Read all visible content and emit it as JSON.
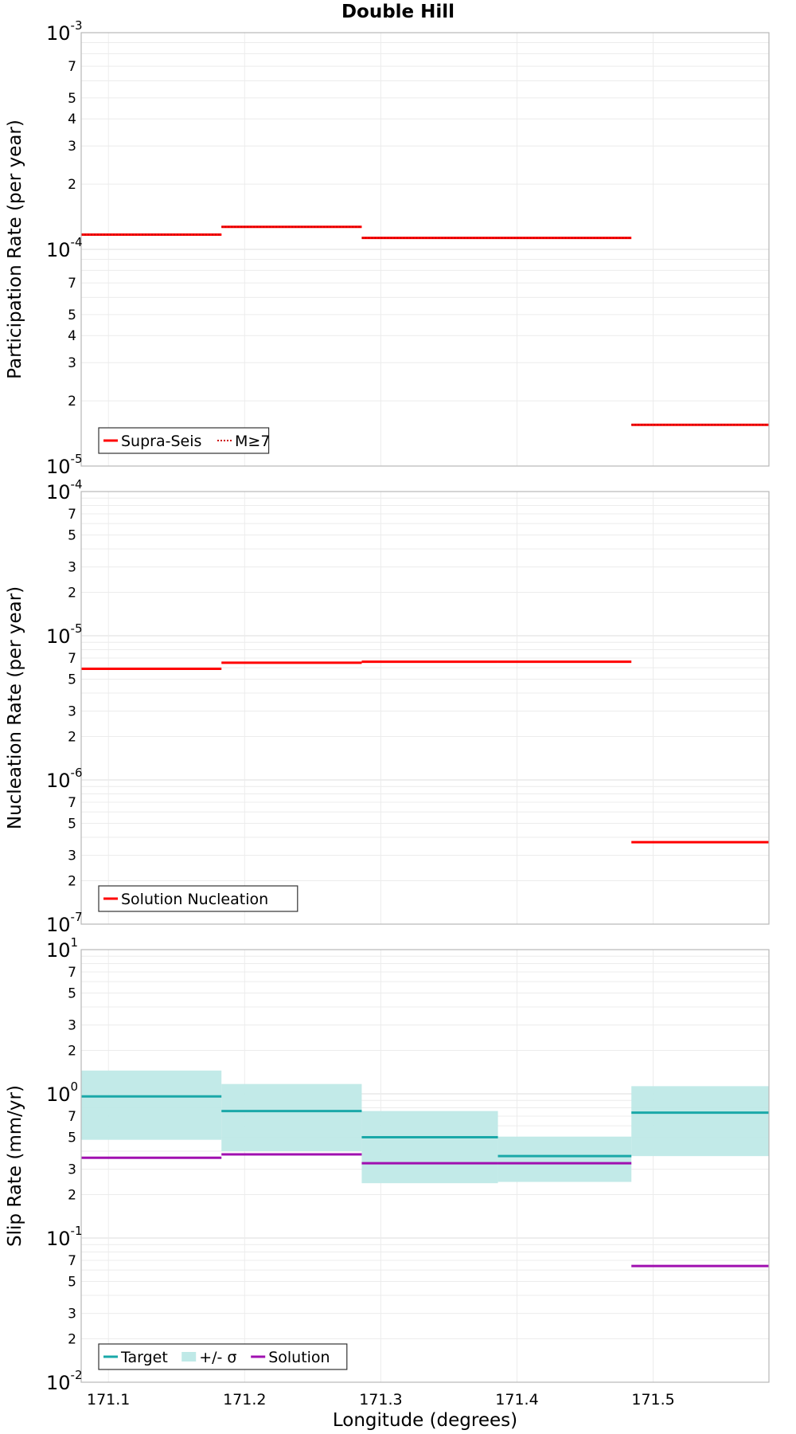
{
  "chart_data": {
    "type": "line",
    "title": "Double Hill",
    "xlabel": "Longitude (degrees)",
    "x_ticks": [
      "171.1",
      "171.2",
      "171.3",
      "171.4",
      "171.5"
    ],
    "xlim": [
      171.08,
      171.585
    ],
    "grid": true,
    "x_edges": [
      171.08,
      171.183,
      171.286,
      171.386,
      171.484,
      171.585
    ],
    "panels": [
      {
        "ylabel": "Participation Rate (per year)",
        "y_scale": "log",
        "ylim": [
          1e-05,
          0.001
        ],
        "legend_position": "bottom-left",
        "series": [
          {
            "name": "Supra-Seis",
            "style": "solid",
            "color": "#ff0000",
            "values": [
              0.000117,
              0.000127,
              0.000113,
              0.000113,
              1.55e-05
            ]
          },
          {
            "name": "M≥7",
            "style": "dotted",
            "color": "#cc0000",
            "values": [
              0.000117,
              0.000127,
              0.000113,
              0.000113,
              1.55e-05
            ]
          }
        ]
      },
      {
        "ylabel": "Nucleation Rate (per year)",
        "y_scale": "log",
        "ylim": [
          1e-07,
          0.0001
        ],
        "legend_position": "bottom-left",
        "series": [
          {
            "name": "Solution Nucleation",
            "style": "solid",
            "color": "#ff0000",
            "values": [
              5.9e-06,
              6.5e-06,
              6.6e-06,
              6.6e-06,
              3.7e-07
            ]
          }
        ]
      },
      {
        "ylabel": "Slip Rate (mm/yr)",
        "y_scale": "log",
        "ylim": [
          0.01,
          10
        ],
        "legend_position": "bottom-left",
        "band": {
          "name": "+/- σ",
          "color": "#bfe9e7",
          "lower": [
            0.48,
            0.4,
            0.24,
            0.245,
            0.37
          ],
          "upper": [
            1.45,
            1.17,
            0.76,
            0.505,
            1.13
          ]
        },
        "series": [
          {
            "name": "Target",
            "style": "solid",
            "color": "#1aa8a8",
            "values": [
              0.96,
              0.76,
              0.5,
              0.37,
              0.74
            ]
          },
          {
            "name": "Solution",
            "style": "solid",
            "color": "#a010b0",
            "values": [
              0.36,
              0.38,
              0.33,
              0.33,
              0.064
            ]
          }
        ]
      }
    ]
  }
}
